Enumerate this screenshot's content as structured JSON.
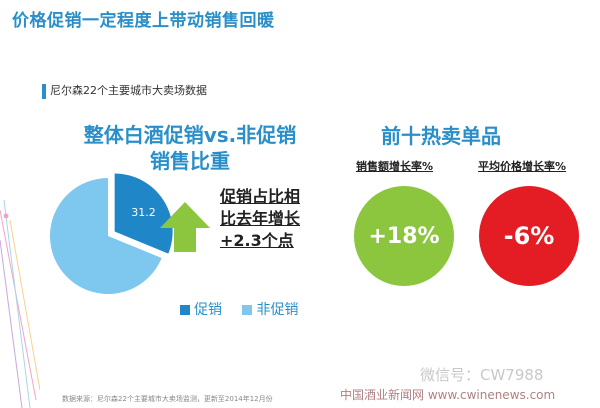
{
  "slide_title": "价格促销一定程度上带动销售回暖",
  "subtitle": "尼尔森22个主要城市大卖场数据",
  "left_section": {
    "title_line1": "整体白酒促销vs.非促销",
    "title_line2": "销售比重",
    "callout_line1": "促销占比相",
    "callout_line2": "比去年增长",
    "callout_line3": "+2.3个点"
  },
  "right_section": {
    "title": "前十热卖单品",
    "sales_label": "销售额增长率%",
    "price_label": "平均价格增长率%",
    "sales_value": "+18%",
    "price_value": "-6%",
    "sales_color": "#8cc63e",
    "price_color": "#e41c24"
  },
  "legend": [
    {
      "label": "促销",
      "color": "#1f86c8"
    },
    {
      "label": "非促销",
      "color": "#7ec7ee"
    }
  ],
  "source_note": "数据来源：尼尔森22个主要城市大卖场监测，更新至2014年12月份",
  "wechat_text": "微信号：CW7988",
  "watermark": "中国酒业新闻网 www.cwinenews.com",
  "chart_data": {
    "type": "pie",
    "title": "整体白酒促销vs.非促销销售比重",
    "categories": [
      "促销",
      "非促销"
    ],
    "values": [
      31.2,
      68.8
    ],
    "data_labels": [
      "31.2",
      ""
    ],
    "exploded": "促销",
    "colors": [
      "#1f86c8",
      "#7ec7ee"
    ],
    "legend_position": "bottom"
  }
}
